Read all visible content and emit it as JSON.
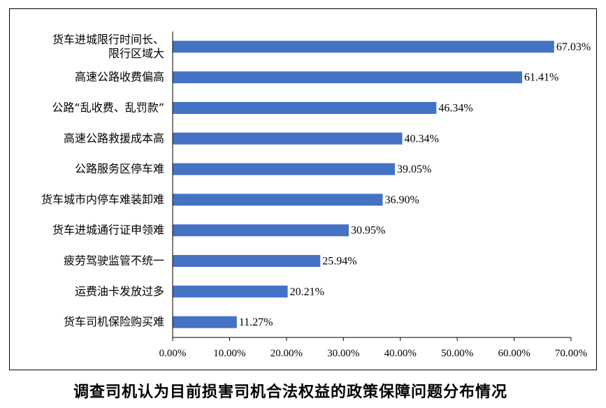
{
  "caption": "调查司机认为目前损害司机合法权益的政策保障问题分布情况",
  "chart_data": {
    "type": "bar",
    "orientation": "horizontal",
    "categories": [
      [
        "货车进城限行时间长、",
        "限行区域大"
      ],
      [
        "高速公路收费偏高"
      ],
      [
        "公路“乱收费、乱罚款”"
      ],
      [
        "高速公路救援成本高"
      ],
      [
        "公路服务区停车难"
      ],
      [
        "货车城市内停车难装卸难"
      ],
      [
        "货车进城通行证申领难"
      ],
      [
        "疲劳驾驶监管不统一"
      ],
      [
        "运费油卡发放过多"
      ],
      [
        "货车司机保险购买难"
      ]
    ],
    "values": [
      67.03,
      61.41,
      46.34,
      40.34,
      39.05,
      36.9,
      30.95,
      25.94,
      20.21,
      11.27
    ],
    "value_labels": [
      "67.03%",
      "61.41%",
      "46.34%",
      "40.34%",
      "39.05%",
      "36.90%",
      "30.95%",
      "25.94%",
      "20.21%",
      "11.27%"
    ],
    "xlim": [
      0,
      70
    ],
    "xticks": [
      0,
      10,
      20,
      30,
      40,
      50,
      60,
      70
    ],
    "xtick_labels": [
      "0.00%",
      "10.00%",
      "20.00%",
      "30.00%",
      "40.00%",
      "50.00%",
      "60.00%",
      "70.00%"
    ],
    "grid": false,
    "legend": "none",
    "bar_color": "#4472c4"
  }
}
